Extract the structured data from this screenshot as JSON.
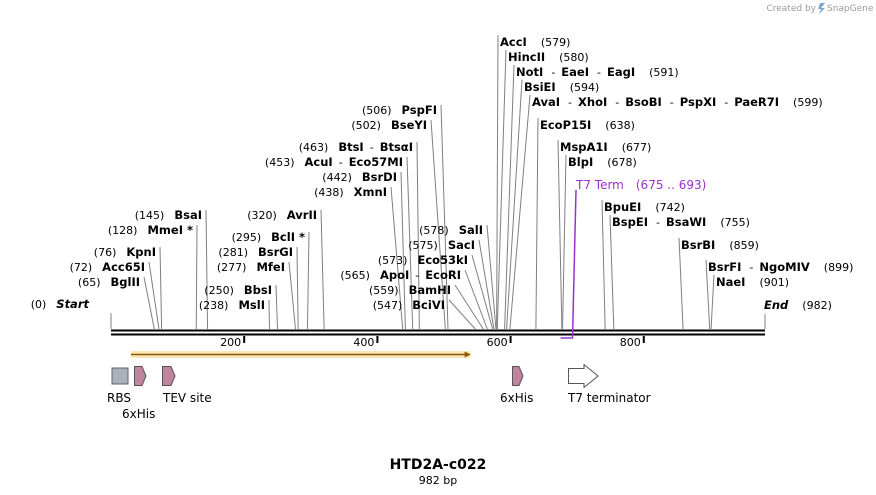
{
  "credit": {
    "prefix": "Created by",
    "brand": "SnapGene"
  },
  "title": "HTD2A-c022",
  "subtitle": "982 bp",
  "colors": {
    "t7": "#9933cc",
    "orf": "#f5a623",
    "orf_fill": "#fbe6b8",
    "feature": "#c0859c",
    "rbs": "#aab1bb",
    "line": "#000000",
    "connector": "#808080"
  },
  "sequence_length": 982,
  "scale_ticks": [
    {
      "value": 200,
      "label": "200"
    },
    {
      "value": 400,
      "label": "400"
    },
    {
      "value": 600,
      "label": "600"
    },
    {
      "value": 800,
      "label": "800"
    }
  ],
  "enzyme_labels": [
    {
      "id": "start",
      "left_pos": "(0)",
      "names": [
        "Start"
      ],
      "site": 0,
      "end": true
    },
    {
      "id": "bglII",
      "left_pos": "(65)",
      "names": [
        "BglII"
      ],
      "site": 65
    },
    {
      "id": "acc65i",
      "left_pos": "(72)",
      "names": [
        "Acc65I"
      ],
      "site": 72
    },
    {
      "id": "kpni",
      "left_pos": "(76)",
      "names": [
        "KpnI"
      ],
      "site": 76
    },
    {
      "id": "mmei",
      "left_pos": "(128)",
      "names": [
        "MmeI *"
      ],
      "site": 128
    },
    {
      "id": "bsai",
      "left_pos": "(145)",
      "names": [
        "BsaI"
      ],
      "site": 145
    },
    {
      "id": "msli",
      "left_pos": "(238)",
      "names": [
        "MslI"
      ],
      "site": 238
    },
    {
      "id": "bbsi",
      "left_pos": "(250)",
      "names": [
        "BbsI"
      ],
      "site": 250
    },
    {
      "id": "mfei",
      "left_pos": "(277)",
      "names": [
        "MfeI"
      ],
      "site": 277
    },
    {
      "id": "bsrgi",
      "left_pos": "(281)",
      "names": [
        "BsrGI"
      ],
      "site": 281
    },
    {
      "id": "bcli",
      "left_pos": "(295)",
      "names": [
        "BclI *"
      ],
      "site": 295
    },
    {
      "id": "avrii",
      "left_pos": "(320)",
      "names": [
        "AvrII"
      ],
      "site": 320
    },
    {
      "id": "xmni",
      "left_pos": "(438)",
      "names": [
        "XmnI"
      ],
      "site": 438
    },
    {
      "id": "bsrdi",
      "left_pos": "(442)",
      "names": [
        "BsrDI"
      ],
      "site": 442
    },
    {
      "id": "acui",
      "left_pos": "(453)",
      "names": [
        "AcuI",
        "Eco57MI"
      ],
      "site": 453
    },
    {
      "id": "btsi",
      "left_pos": "(463)",
      "names": [
        "BtsI",
        "BtsαI"
      ],
      "site": 463
    },
    {
      "id": "bseyi",
      "left_pos": "(502)",
      "names": [
        "BseYI"
      ],
      "site": 502
    },
    {
      "id": "pspfi",
      "left_pos": "(506)",
      "names": [
        "PspFI"
      ],
      "site": 506
    },
    {
      "id": "bcivi",
      "left_pos": "(547)",
      "names": [
        "BciVI"
      ],
      "site": 547
    },
    {
      "id": "bamhi",
      "left_pos": "(559)",
      "names": [
        "BamHI"
      ],
      "site": 559
    },
    {
      "id": "apoi",
      "left_pos": "(565)",
      "names": [
        "ApoI",
        "EcoRI"
      ],
      "site": 565
    },
    {
      "id": "eco53ki",
      "left_pos": "(573)",
      "names": [
        "Eco53kI"
      ],
      "site": 573
    },
    {
      "id": "saci",
      "left_pos": "(575)",
      "names": [
        "SacI"
      ],
      "site": 575
    },
    {
      "id": "sali",
      "left_pos": "(578)",
      "names": [
        "SalI"
      ],
      "site": 578
    },
    {
      "id": "acci",
      "right_pos": "(579)",
      "names": [
        "AccI"
      ],
      "site": 579
    },
    {
      "id": "hincii",
      "right_pos": "(580)",
      "names": [
        "HincII"
      ],
      "site": 580
    },
    {
      "id": "noti",
      "right_pos": "(591)",
      "names": [
        "NotI",
        "EaeI",
        "EagI"
      ],
      "site": 591
    },
    {
      "id": "bsiei",
      "right_pos": "(594)",
      "names": [
        "BsiEI"
      ],
      "site": 594
    },
    {
      "id": "avai",
      "right_pos": "(599)",
      "names": [
        "AvaI",
        "XhoI",
        "BsoBI",
        "PspXI",
        "PaeR7I"
      ],
      "site": 599
    },
    {
      "id": "ecop15i",
      "right_pos": "(638)",
      "names": [
        "EcoP15I"
      ],
      "site": 638
    },
    {
      "id": "mspa1i",
      "right_pos": "(677)",
      "names": [
        "MspA1I"
      ],
      "site": 677
    },
    {
      "id": "blpi",
      "right_pos": "(678)",
      "names": [
        "BlpI"
      ],
      "site": 678
    },
    {
      "id": "bpuei",
      "right_pos": "(742)",
      "names": [
        "BpuEI"
      ],
      "site": 742
    },
    {
      "id": "bspei",
      "right_pos": "(755)",
      "names": [
        "BspEI",
        "BsaWI"
      ],
      "site": 755
    },
    {
      "id": "bsrbi",
      "right_pos": "(859)",
      "names": [
        "BsrBI"
      ],
      "site": 859
    },
    {
      "id": "bsrfi",
      "right_pos": "(899)",
      "names": [
        "BsrFI",
        "NgoMIV"
      ],
      "site": 899
    },
    {
      "id": "naei",
      "right_pos": "(901)",
      "names": [
        "NaeI"
      ],
      "site": 901
    },
    {
      "id": "end",
      "right_pos": "(982)",
      "names": [
        "End"
      ],
      "site": 982,
      "end": true
    }
  ],
  "t7_term": {
    "name": "T7 Term",
    "range": "(675 .. 693)",
    "start": 675,
    "end": 693
  },
  "orf": {
    "start": 30,
    "end": 540
  },
  "features": [
    {
      "id": "rbs",
      "label": "RBS"
    },
    {
      "id": "his1",
      "label": "6xHis"
    },
    {
      "id": "tev",
      "label": "TEV site"
    },
    {
      "id": "his2",
      "label": "6xHis"
    },
    {
      "id": "t7term",
      "label": "T7 terminator"
    }
  ]
}
